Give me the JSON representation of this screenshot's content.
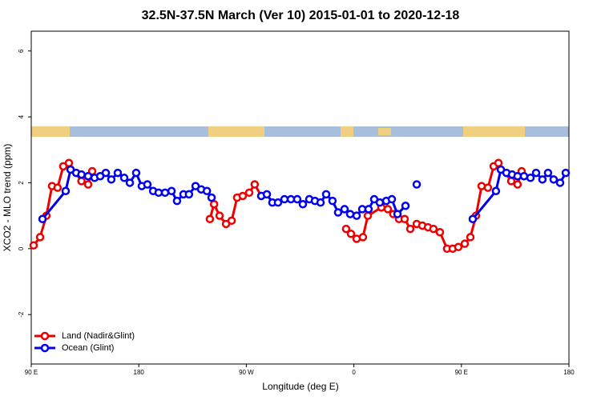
{
  "chart_data": {
    "type": "line",
    "title": "32.5N-37.5N March (Ver 10)   2015-01-01 to 2020-12-18",
    "x_label": "Longitude (deg E)",
    "y_label": "XCO2 - MLO trend (ppm)",
    "xlim": [
      90,
      540
    ],
    "ylim": [
      -3.5,
      6.6
    ],
    "xticks": [
      {
        "value": 90,
        "label": "90 E"
      },
      180,
      {
        "value": 270,
        "label": "90 W"
      },
      {
        "value": 360,
        "label": "0"
      },
      {
        "value": 450,
        "label": "90 E"
      },
      {
        "value": 540,
        "label": "180"
      }
    ],
    "yticks": [
      -2,
      0,
      2,
      4,
      6
    ],
    "legend": "bottom-left",
    "series": [
      {
        "name": "Land (Nadir&Glint)",
        "color": "#ee0000",
        "x": [
          92,
          97.4,
          102.7,
          107.4,
          112,
          116.8,
          121.5,
          132,
          137.6,
          141,
          null,
          239.5,
          243,
          247.6,
          253,
          257.7,
          262.3,
          267,
          272.4,
          277,
          282.5,
          null,
          353.5,
          357.6,
          362.3,
          367.6,
          371.7,
          383,
          388.4,
          393,
          397.8,
          402.5,
          407.2,
          412.6,
          417.3,
          422,
          426.6,
          432,
          438,
          442.7,
          447.4,
          452.8,
          457.5,
          462.2,
          466.9,
          472.2,
          477,
          481,
          491.7,
          497,
          500.4
        ],
        "values": [
          0.1,
          0.35,
          1.0,
          1.9,
          1.85,
          2.5,
          2.6,
          2.05,
          1.95,
          2.35,
          null,
          0.9,
          1.35,
          1.0,
          0.75,
          0.85,
          1.55,
          1.6,
          1.7,
          1.95,
          1.6,
          null,
          0.6,
          0.45,
          0.3,
          0.35,
          1.0,
          1.25,
          1.2,
          1.05,
          0.9,
          0.9,
          0.6,
          0.75,
          0.7,
          0.65,
          0.6,
          0.5,
          0.0,
          0.0,
          0.05,
          0.15,
          0.35,
          1.0,
          1.9,
          1.85,
          2.5,
          2.6,
          2.05,
          1.95,
          2.35
        ]
      },
      {
        "name": "Ocean (Glint)",
        "color": "#0000ee",
        "x": [
          99.4,
          118.8,
          122.9,
          127.6,
          132,
          137.6,
          143,
          147.7,
          152.4,
          157,
          162.4,
          167.8,
          172.5,
          177.8,
          182.5,
          187.2,
          192,
          196.6,
          202,
          207.4,
          212,
          217.4,
          222,
          227.5,
          232.2,
          237,
          240.9,
          null,
          282.5,
          287.2,
          291.8,
          296.5,
          301.9,
          307.3,
          312.6,
          317.3,
          322.7,
          327.4,
          332.1,
          336.8,
          342.1,
          346.8,
          352.2,
          356.9,
          362.3,
          367,
          372.3,
          377,
          381.7,
          387.1,
          391.8,
          396.5,
          403.2,
          null,
          412.6,
          null,
          459.5,
          478.9,
          483,
          487.7,
          492.4,
          497,
          502.4,
          507.8,
          512.5,
          517.8,
          522.5,
          527.2,
          532.6,
          537.3
        ],
        "values": [
          0.9,
          1.75,
          2.4,
          2.3,
          2.25,
          2.2,
          2.15,
          2.2,
          2.3,
          2.1,
          2.3,
          2.15,
          2.0,
          2.3,
          1.9,
          1.95,
          1.75,
          1.7,
          1.7,
          1.75,
          1.45,
          1.65,
          1.65,
          1.9,
          1.8,
          1.75,
          1.55,
          null,
          1.6,
          1.65,
          1.4,
          1.4,
          1.5,
          1.5,
          1.5,
          1.35,
          1.5,
          1.45,
          1.4,
          1.65,
          1.45,
          1.1,
          1.2,
          1.05,
          1.0,
          1.2,
          1.2,
          1.5,
          1.4,
          1.45,
          1.5,
          1.05,
          1.3,
          null,
          1.95,
          null,
          0.9,
          1.75,
          2.4,
          2.3,
          2.25,
          2.2,
          2.2,
          2.15,
          2.3,
          2.1,
          2.3,
          2.1,
          2.0,
          2.3
        ]
      }
    ]
  }
}
